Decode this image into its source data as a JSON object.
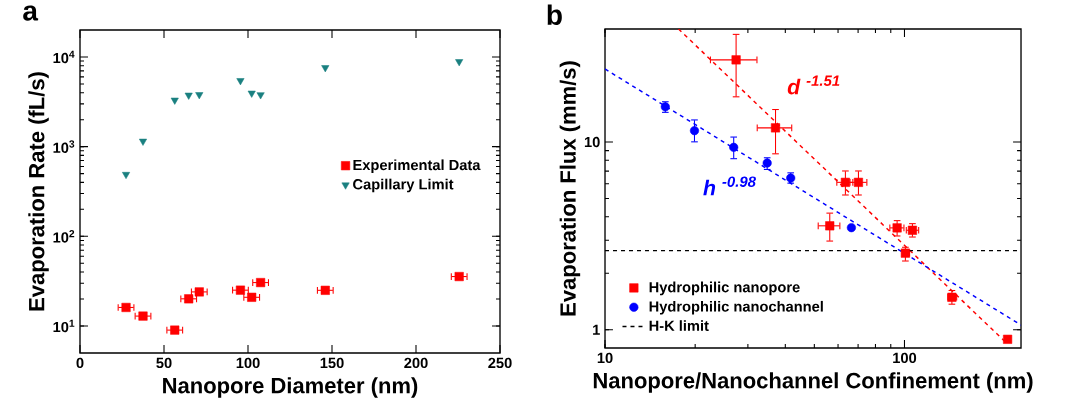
{
  "chart_data": [
    {
      "type": "scatter",
      "title": "a",
      "xlabel": "Nanopore Diameter (nm)",
      "ylabel": "Evaporation Rate (fL/s)",
      "log": "y",
      "legend": "right",
      "xlim": [
        0,
        250
      ],
      "xticks": [
        0,
        50,
        100,
        150,
        200,
        250
      ],
      "ylim": [
        5,
        20000
      ],
      "yticks": [
        {
          "value": 10,
          "label": "10$^{1}$"
        },
        {
          "value": 100,
          "label": "10$^{2}$"
        },
        {
          "value": 1000,
          "label": "10$^{3}$"
        },
        {
          "value": 10000,
          "label": "10$^{4}$"
        }
      ],
      "series": [
        {
          "name": "Experimental Data",
          "color": "#ff0000",
          "marker": "square",
          "x": [
            27.4,
            37.5,
            56.4,
            64.7,
            71,
            95.5,
            102.2,
            107.5,
            146,
            225.7
          ],
          "values": [
            16.1,
            12.9,
            9.0,
            20.1,
            24,
            25.1,
            20.9,
            30.5,
            25,
            35.6
          ],
          "xerrors": [
            5,
            5,
            5,
            5,
            5,
            5,
            5,
            5,
            5,
            5
          ]
        },
        {
          "name": "Capillary Limit",
          "color": "#1a8080",
          "marker": "triangle",
          "x": [
            27.4,
            37.5,
            56.4,
            64.7,
            71,
            95.5,
            102.2,
            107.5,
            146,
            225.7
          ],
          "values": [
            490,
            1150,
            3300,
            3750,
            3800,
            5450,
            3950,
            3790,
            7600,
            8870
          ]
        }
      ]
    },
    {
      "type": "scatter",
      "title": "b",
      "xlabel": "Nanopore/Nanochannel Confinement (nm)",
      "ylabel": "Evaporation Flux (mm/s)",
      "log": "xy",
      "legend": "bottom left",
      "xlim": [
        10,
        245
      ],
      "xticks": [
        10,
        100
      ],
      "ylim": [
        0.8,
        40
      ],
      "yticks": [
        1,
        10
      ],
      "series": [
        {
          "name": "Hydrophilic nanopore",
          "color": "#ff0000",
          "marker": "square",
          "x": [
            27.4,
            37.1,
            63.5,
            70.2,
            56.3,
            94.5,
            106.3,
            100.7,
            144,
            221
          ],
          "values": [
            27.4,
            11.9,
            6.1,
            6.1,
            3.58,
            3.49,
            3.39,
            2.56,
            1.49,
            0.89
          ],
          "errors": [
            [
              17.3,
              37.7
            ],
            [
              8.6,
              15.0
            ],
            [
              5.19,
              7.06
            ],
            [
              5.19,
              7.06
            ],
            [
              2.95,
              4.21
            ],
            [
              3.14,
              3.84
            ],
            [
              3.1,
              3.7
            ],
            [
              2.31,
              2.77
            ],
            [
              1.36,
              1.63
            ],
            null
          ],
          "xerrors": [
            [
              22.4,
              32.3
            ],
            [
              32.1,
              42.2
            ],
            [
              59.2,
              67.5
            ],
            [
              65.5,
              75.2
            ],
            [
              51.3,
              61.1
            ],
            [
              89,
              100
            ],
            [
              101,
              112
            ],
            [
              98,
              104.4
            ],
            [
              139,
              150
            ],
            null
          ]
        },
        {
          "name": "Hydrophilic nanochannel",
          "color": "#0000ff",
          "marker": "circle",
          "x": [
            15.9,
            19.9,
            26.9,
            34.8,
            41.7,
            66.5
          ],
          "values": [
            15.4,
            11.5,
            9.37,
            7.73,
            6.43,
            3.5
          ],
          "errors": [
            [
              14.3,
              16.5
            ],
            [
              9.96,
              13.2
            ],
            [
              8.1,
              10.7
            ],
            [
              7.1,
              8.3
            ],
            [
              6.0,
              6.9
            ],
            null
          ]
        },
        {
          "type": "line",
          "name": "d $^{-1.51}$",
          "color": "#ff0000",
          "line_style": "dashed",
          "x": [
            17.6,
            220
          ],
          "values": [
            40,
            0.845
          ]
        },
        {
          "type": "line",
          "name": "h $^{-0.98}$",
          "color": "#0000ff",
          "line_style": "dashed",
          "x": [
            10,
            245
          ],
          "values": [
            24.5,
            1.06
          ]
        }
      ],
      "ref_lines": [
        {
          "axis": "y",
          "value": 2.64,
          "label": "H-K limit",
          "color": "#000000",
          "line_style": "dashed"
        }
      ]
    }
  ]
}
